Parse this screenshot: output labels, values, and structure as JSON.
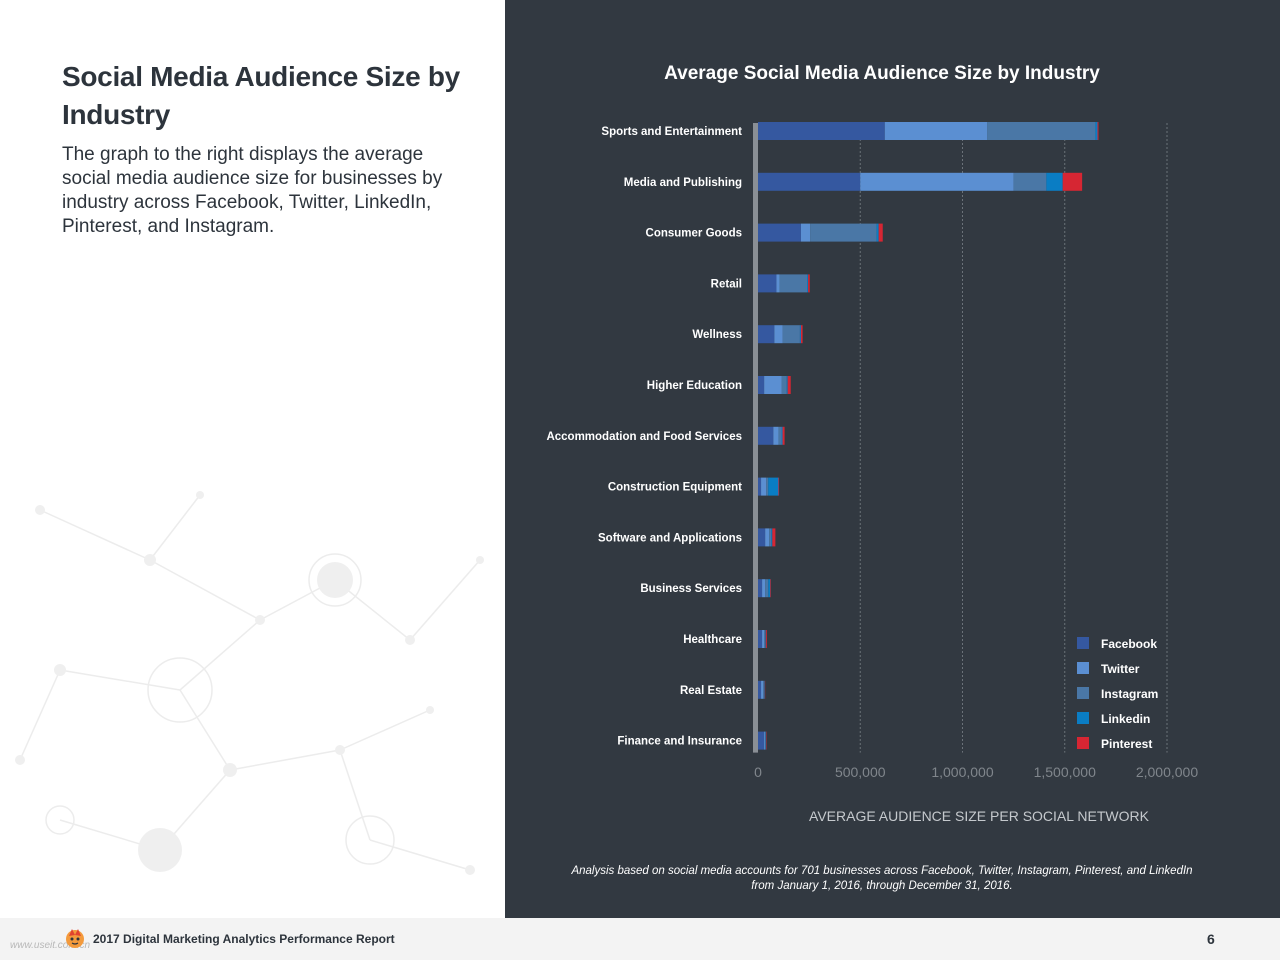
{
  "page": {
    "title": "Social Media Audience Size by Industry",
    "description": "The graph to the right displays the average social media audience size for businesses by industry across Facebook, Twitter, LinkedIn, Pinterest, and Instagram.",
    "note": "Analysis based on social media accounts for 701 businesses across Facebook, Twitter, Instagram, Pinterest, and LinkedIn from January 1, 2016, through December 31, 2016."
  },
  "footer": {
    "watermark": "www.useit.com.cn",
    "title": "2017 Digital Marketing Analytics Performance Report",
    "page_number": "6"
  },
  "colors": {
    "Facebook": "#3558a0",
    "Twitter": "#5b8fd2",
    "Instagram": "#4a77a6",
    "Linkedin": "#0a7dc4",
    "Pinterest": "#d62633",
    "panel_bg": "#323941",
    "baseline": "#8a8f95"
  },
  "chart_data": {
    "type": "bar",
    "orientation": "horizontal",
    "stacked": true,
    "title": "Average Social Media Audience Size by Industry",
    "xlabel": "AVERAGE AUDIENCE SIZE PER SOCIAL NETWORK",
    "ylabel": "",
    "xlim": [
      0,
      2000000
    ],
    "xticks": [
      0,
      500000,
      1000000,
      1500000,
      2000000
    ],
    "xtick_labels": [
      "0",
      "500,000",
      "1,000,000",
      "1,500,000",
      "2,000,000"
    ],
    "grid": true,
    "legend_position": "bottom-right",
    "categories": [
      "Sports and Entertainment",
      "Media and Publishing",
      "Consumer Goods",
      "Retail",
      "Wellness",
      "Higher Education",
      "Accommodation and Food Services",
      "Construction Equipment",
      "Software and Applications",
      "Business Services",
      "Healthcare",
      "Real Estate",
      "Finance and Insurance"
    ],
    "series": [
      {
        "name": "Facebook",
        "values": [
          620000,
          500000,
          210000,
          90000,
          80000,
          30000,
          75000,
          15000,
          35000,
          20000,
          20000,
          15000,
          30000
        ]
      },
      {
        "name": "Twitter",
        "values": [
          500000,
          750000,
          45000,
          15000,
          40000,
          85000,
          25000,
          25000,
          20000,
          15000,
          10000,
          10000,
          5000
        ]
      },
      {
        "name": "Instagram",
        "values": [
          530000,
          160000,
          325000,
          135000,
          85000,
          25000,
          15000,
          10000,
          10000,
          15000,
          5000,
          5000,
          3000
        ]
      },
      {
        "name": "Linkedin",
        "values": [
          10000,
          80000,
          10000,
          5000,
          5000,
          5000,
          5000,
          50000,
          5000,
          10000,
          3000,
          3000,
          2000
        ]
      },
      {
        "name": "Pinterest",
        "values": [
          5000,
          95000,
          20000,
          8000,
          8000,
          15000,
          10000,
          3000,
          15000,
          3000,
          5000,
          2000,
          2000
        ]
      }
    ]
  }
}
